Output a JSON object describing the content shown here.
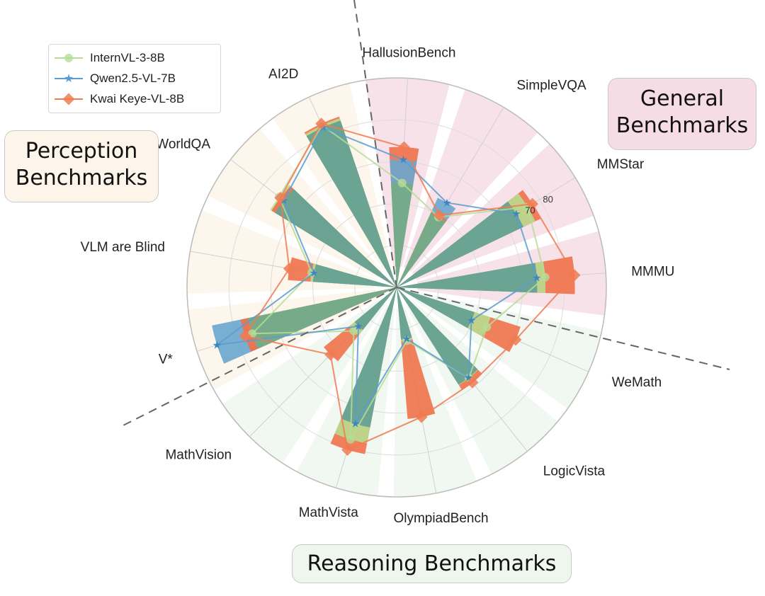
{
  "chart_data": {
    "type": "radar",
    "axes": [
      "HallusionBench",
      "SimpleVQA",
      "MMStar",
      "MMMU",
      "WeMath",
      "LogicVista",
      "OlympiadBench",
      "MathVista",
      "MathVision",
      "V*",
      "VLM are Blind",
      "RealWorldQA",
      "AI2D"
    ],
    "tick_labels": [
      "70",
      "80"
    ],
    "rlim": [
      0,
      100
    ],
    "series": [
      {
        "name": "InternVL-3-8B",
        "color": "#b6dc97",
        "values": [
          49.9,
          39.0,
          73.3,
          71.0,
          47.0,
          55.3,
          25.9,
          75.8,
          29.2,
          72.3,
          41.2,
          70.8,
          85.2
        ]
      },
      {
        "name": "Qwen2.5-VL-7B",
        "color": "#5a9ccf",
        "values": [
          61.0,
          47.0,
          67.0,
          67.0,
          39.0,
          55.0,
          25.0,
          68.0,
          26.0,
          90.0,
          40.0,
          68.0,
          84.0
        ]
      },
      {
        "name": "Kwai Keye-VL-8B",
        "color": "#f07a52",
        "values": [
          67.0,
          40.0,
          76.0,
          85.0,
          62.0,
          58.0,
          63.0,
          81.0,
          45.0,
          76.0,
          52.0,
          70.0,
          86.0
        ]
      }
    ],
    "groups": [
      {
        "name": "General Benchmarks",
        "axes": [
          "HallusionBench",
          "SimpleVQA",
          "MMStar",
          "MMMU"
        ],
        "color": "#f6dde5"
      },
      {
        "name": "Reasoning Benchmarks",
        "axes": [
          "WeMath",
          "LogicVista",
          "OlympiadBench",
          "MathVista",
          "MathVision"
        ],
        "color": "#eef6ee"
      },
      {
        "name": "Perception Benchmarks",
        "axes": [
          "V*",
          "VLM are Blind",
          "RealWorldQA",
          "AI2D"
        ],
        "color": "#fdf5ea"
      }
    ],
    "legend_position": "top-left"
  },
  "groups_text": {
    "perception": [
      "Perception",
      "Benchmarks"
    ],
    "general": [
      "General",
      "Benchmarks"
    ],
    "reasoning": "Reasoning Benchmarks"
  }
}
